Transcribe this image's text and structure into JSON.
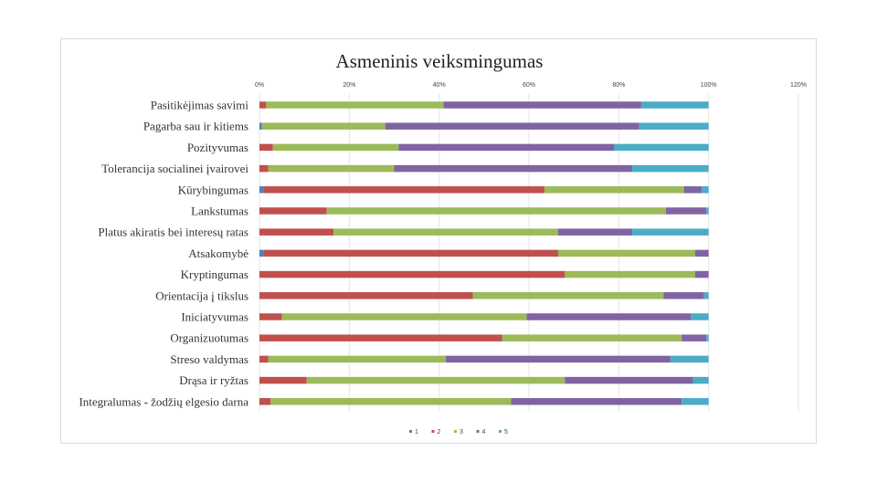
{
  "chart_data": {
    "type": "bar",
    "orientation": "horizontal",
    "stacked": true,
    "title": "Asmeninis veiksmingumas",
    "xlabel": "",
    "ylabel": "",
    "xlim": [
      0,
      120
    ],
    "x_ticks": [
      "0%",
      "20%",
      "40%",
      "60%",
      "80%",
      "100%",
      "120%"
    ],
    "x_tick_values": [
      0,
      20,
      40,
      60,
      80,
      100,
      120
    ],
    "grid": true,
    "legend_position": "bottom",
    "categories": [
      "Pasitikėjimas savimi",
      "Pagarba sau ir kitiems",
      "Pozityvumas",
      "Tolerancija socialinei įvairovei",
      "Kūrybingumas",
      "Lankstumas",
      "Platus akiratis bei interesų ratas",
      "Atsakomybė",
      "Kryptingumas",
      "Orientacija į tikslus",
      "Iniciatyvumas",
      "Organizuotumas",
      "Streso valdymas",
      "Drąsa ir ryžtas",
      "Integralumas - žodžių elgesio darna"
    ],
    "series": [
      {
        "name": "1",
        "color": "#4f81bd",
        "values": [
          0,
          0.5,
          0,
          0,
          1,
          0,
          0,
          1,
          0,
          0,
          0,
          0,
          0,
          0,
          0
        ]
      },
      {
        "name": "2",
        "color": "#c0504d",
        "values": [
          1.5,
          0,
          3,
          2,
          62.5,
          15,
          16.5,
          65.5,
          68,
          47.5,
          5,
          54,
          2,
          10.5,
          2.5
        ]
      },
      {
        "name": "3",
        "color": "#9bbb59",
        "values": [
          39.5,
          27.5,
          28,
          28,
          31,
          75.5,
          50,
          30.5,
          29,
          42.5,
          54.5,
          40,
          39.5,
          57.5,
          53.5
        ]
      },
      {
        "name": "4",
        "color": "#8064a2",
        "values": [
          44,
          56.5,
          48,
          53,
          4,
          9,
          16.5,
          3,
          3,
          9,
          36.5,
          5.5,
          50,
          28.5,
          38
        ]
      },
      {
        "name": "5",
        "color": "#4bacc6",
        "values": [
          15,
          15.5,
          21,
          17,
          1.5,
          0.5,
          17,
          0,
          0,
          1,
          4,
          0.5,
          8.5,
          3.5,
          6
        ]
      }
    ]
  }
}
